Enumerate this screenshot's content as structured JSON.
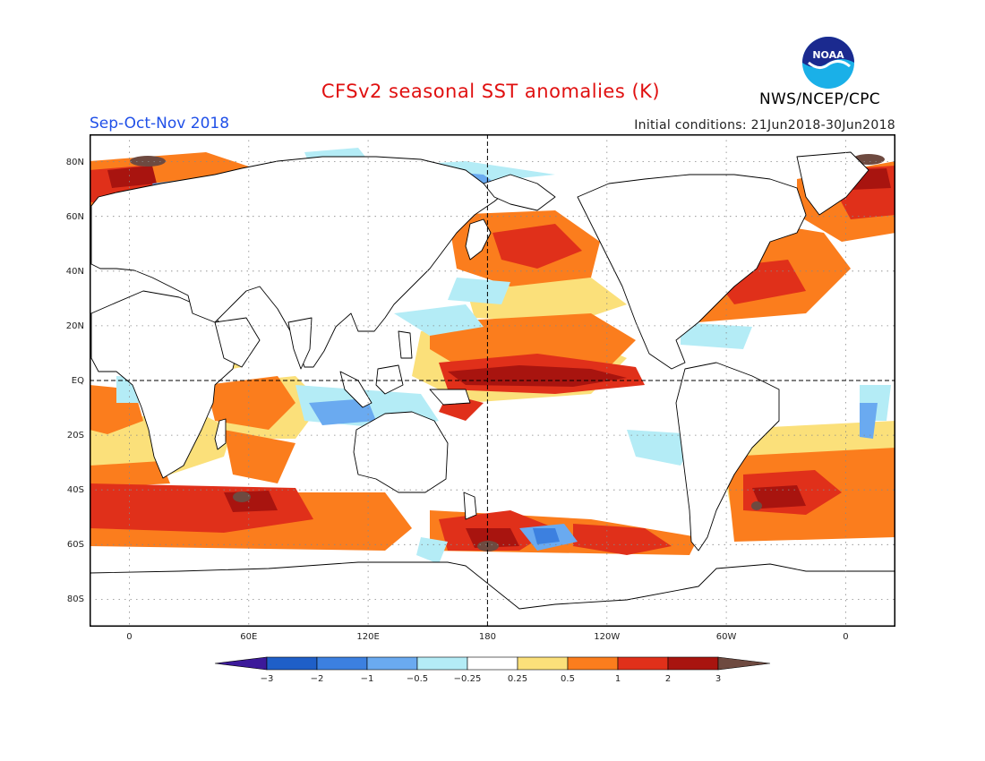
{
  "header": {
    "title": "CFSv2 seasonal SST anomalies (K)",
    "period": "Sep-Oct-Nov 2018",
    "initial_conditions": "Initial conditions: 21Jun2018-30Jun2018",
    "agency": "NWS/NCEP/CPC",
    "logo_text": "NOAA"
  },
  "map": {
    "projection": "equirectangular",
    "lon_range": [
      -20,
      385
    ],
    "lat_range": [
      -90,
      90
    ],
    "grid": "dotted",
    "lat_labels": [
      "80N",
      "60N",
      "40N",
      "20N",
      "EQ",
      "20S",
      "40S",
      "60S",
      "80S"
    ],
    "lon_labels": [
      "0",
      "60E",
      "120E",
      "180",
      "120W",
      "60W",
      "0"
    ]
  },
  "legend": {
    "unit": "K",
    "tick_labels": [
      "-3",
      "-2",
      "-1",
      "-0.5",
      "-0.25",
      "0.25",
      "0.5",
      "1",
      "2",
      "3"
    ],
    "colors": [
      "#3c1a9a",
      "#1f5fc8",
      "#3c80e0",
      "#6aaaf0",
      "#b4ecf6",
      "#ffffff",
      "#fbe07a",
      "#fb7d1d",
      "#e0301a",
      "#a8140f",
      "#6e4a40"
    ]
  }
}
